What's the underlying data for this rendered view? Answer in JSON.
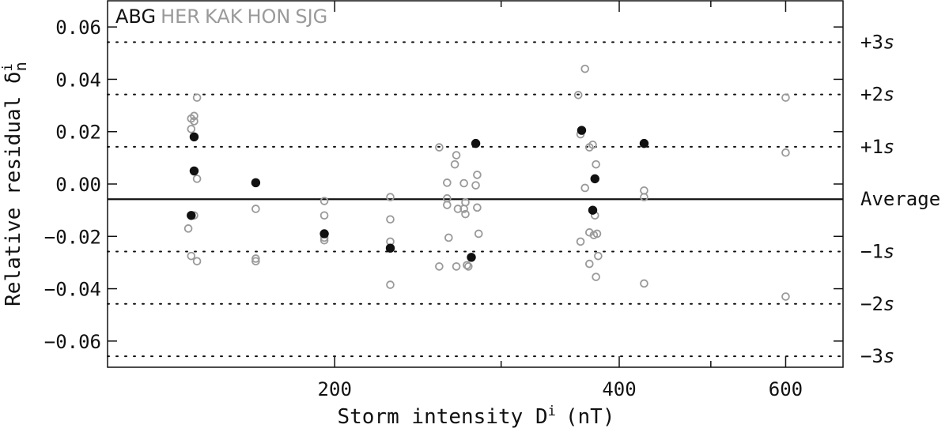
{
  "chart_data": {
    "type": "scatter",
    "title": "",
    "xlabel": "Storm intensity D",
    "xlabel_sup": "i",
    "xlabel_unit": "(nT)",
    "ylabel": "Relative residual δ",
    "ylabel_sup": "i",
    "ylabel_sub": "n",
    "xscale": "log",
    "xlim": [
      115,
      690
    ],
    "ylim": [
      -0.07,
      0.07
    ],
    "xticks": [
      {
        "value": 200,
        "label": "200"
      },
      {
        "value": 400,
        "label": "400"
      },
      {
        "value": 600,
        "label": "600"
      }
    ],
    "x_minor_ticks": [
      300,
      500
    ],
    "yticks": [
      {
        "value": 0.06,
        "label": "0.06"
      },
      {
        "value": 0.04,
        "label": "0.04"
      },
      {
        "value": 0.02,
        "label": "0.02"
      },
      {
        "value": 0.0,
        "label": "0.00"
      },
      {
        "value": -0.02,
        "label": "−0.02"
      },
      {
        "value": -0.04,
        "label": "−0.04"
      },
      {
        "value": -0.06,
        "label": "−0.06"
      }
    ],
    "average_line": {
      "value": -0.0058,
      "label": "Average"
    },
    "sigma_lines": [
      {
        "value": 0.0542,
        "label": "+3",
        "unit": "s"
      },
      {
        "value": 0.0342,
        "label": "+2",
        "unit": "s"
      },
      {
        "value": 0.0142,
        "label": "+1",
        "unit": "s"
      },
      {
        "value": -0.0258,
        "label": "−1",
        "unit": "s"
      },
      {
        "value": -0.0458,
        "label": "−2",
        "unit": "s"
      },
      {
        "value": -0.0658,
        "label": "−3",
        "unit": "s"
      }
    ],
    "legend": {
      "placement": "top-left",
      "entries": [
        {
          "label": "ABG",
          "color": "#111111"
        },
        {
          "label": "HER",
          "color": "#9a9a9a"
        },
        {
          "label": "KAK",
          "color": "#9a9a9a"
        },
        {
          "label": "HON",
          "color": "#9a9a9a"
        },
        {
          "label": "SJG",
          "color": "#9a9a9a"
        }
      ]
    },
    "series": [
      {
        "name": "ABG",
        "marker": "filled",
        "color": "#111111",
        "points": [
          [
            142,
            0.018
          ],
          [
            142,
            0.005
          ],
          [
            141,
            -0.012
          ],
          [
            165,
            0.0005
          ],
          [
            195,
            -0.019
          ],
          [
            229,
            -0.0245
          ],
          [
            279,
            -0.028
          ],
          [
            282,
            0.0155
          ],
          [
            365,
            0.0205
          ],
          [
            377,
            0.002
          ],
          [
            375,
            -0.01
          ],
          [
            425,
            0.0155
          ]
        ]
      },
      {
        "name": "HER KAK HON SJG",
        "marker": "open",
        "color": "#9a9a9a",
        "points": [
          [
            143,
            0.033
          ],
          [
            142,
            0.026
          ],
          [
            141,
            0.025
          ],
          [
            142,
            0.024
          ],
          [
            141,
            0.021
          ],
          [
            143,
            0.002
          ],
          [
            142,
            -0.012
          ],
          [
            140,
            -0.017
          ],
          [
            141,
            -0.0275
          ],
          [
            143,
            -0.0295
          ],
          [
            165,
            0.0003
          ],
          [
            165,
            -0.0095
          ],
          [
            165,
            -0.0285
          ],
          [
            165,
            -0.0295
          ],
          [
            195,
            -0.0065
          ],
          [
            195,
            -0.012
          ],
          [
            195,
            -0.0205
          ],
          [
            195,
            -0.0215
          ],
          [
            229,
            -0.005
          ],
          [
            229,
            -0.0135
          ],
          [
            229,
            -0.022
          ],
          [
            229,
            -0.0385
          ],
          [
            258,
            0.014
          ],
          [
            258,
            -0.0315
          ],
          [
            263,
            0.0005
          ],
          [
            263,
            -0.0055
          ],
          [
            263,
            -0.008
          ],
          [
            264,
            -0.0205
          ],
          [
            269,
            0.011
          ],
          [
            268,
            0.0075
          ],
          [
            270,
            -0.0095
          ],
          [
            269,
            -0.0315
          ],
          [
            274,
            0.0003
          ],
          [
            275,
            -0.007
          ],
          [
            274,
            -0.0095
          ],
          [
            275,
            -0.0115
          ],
          [
            276,
            -0.031
          ],
          [
            283,
            0.0035
          ],
          [
            282,
            -0.0005
          ],
          [
            283,
            -0.009
          ],
          [
            284,
            -0.019
          ],
          [
            277,
            -0.0315
          ],
          [
            368,
            0.044
          ],
          [
            362,
            0.034
          ],
          [
            364,
            0.019
          ],
          [
            368,
            -0.0015
          ],
          [
            364,
            -0.022
          ],
          [
            372,
            0.014
          ],
          [
            375,
            0.015
          ],
          [
            378,
            0.0075
          ],
          [
            372,
            -0.0185
          ],
          [
            376,
            -0.0195
          ],
          [
            379,
            -0.019
          ],
          [
            377,
            -0.012
          ],
          [
            380,
            -0.0275
          ],
          [
            378,
            -0.0355
          ],
          [
            372,
            -0.0305
          ],
          [
            425,
            -0.0025
          ],
          [
            425,
            -0.005
          ],
          [
            425,
            -0.038
          ],
          [
            600,
            0.033
          ],
          [
            600,
            0.012
          ],
          [
            600,
            -0.043
          ]
        ]
      }
    ]
  }
}
